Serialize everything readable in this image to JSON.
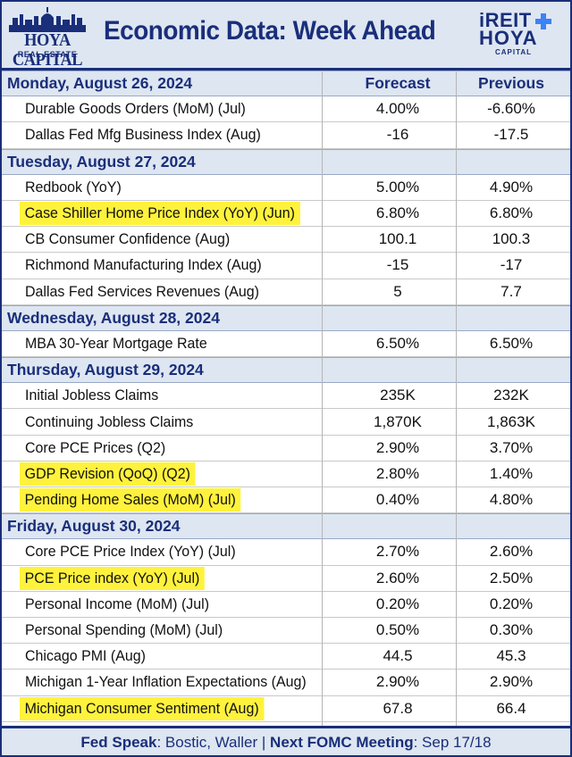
{
  "header": {
    "title": "Economic Data: Week Ahead",
    "logo_left_brand": "HOYA CAPITAL",
    "logo_left_sub": "REAL ESTATE",
    "logo_right_line1": "iREIT",
    "logo_right_line2": "HOYA",
    "logo_right_line3": "CAPITAL"
  },
  "columns": {
    "forecast": "Forecast",
    "previous": "Previous"
  },
  "days": [
    {
      "label": "Monday, August 26, 2024",
      "events": [
        {
          "name": "Durable Goods Orders (MoM) (Jul)",
          "forecast": "4.00%",
          "previous": "-6.60%",
          "highlight": false
        },
        {
          "name": "Dallas Fed Mfg Business Index (Aug)",
          "forecast": "-16",
          "previous": "-17.5",
          "highlight": false
        }
      ]
    },
    {
      "label": "Tuesday, August 27, 2024",
      "events": [
        {
          "name": "Redbook (YoY)",
          "forecast": "5.00%",
          "previous": "4.90%",
          "highlight": false
        },
        {
          "name": "Case Shiller Home Price Index (YoY) (Jun)",
          "forecast": "6.80%",
          "previous": "6.80%",
          "highlight": true
        },
        {
          "name": "CB Consumer Confidence (Aug)",
          "forecast": "100.1",
          "previous": "100.3",
          "highlight": false
        },
        {
          "name": "Richmond Manufacturing Index (Aug)",
          "forecast": "-15",
          "previous": "-17",
          "highlight": false
        },
        {
          "name": "Dallas Fed Services Revenues (Aug)",
          "forecast": "5",
          "previous": "7.7",
          "highlight": false
        }
      ]
    },
    {
      "label": "Wednesday, August 28, 2024",
      "events": [
        {
          "name": "MBA 30-Year Mortgage Rate",
          "forecast": "6.50%",
          "previous": "6.50%",
          "highlight": false
        }
      ]
    },
    {
      "label": "Thursday, August 29, 2024",
      "events": [
        {
          "name": "Initial Jobless Claims",
          "forecast": "235K",
          "previous": "232K",
          "highlight": false
        },
        {
          "name": "Continuing Jobless Claims",
          "forecast": "1,870K",
          "previous": "1,863K",
          "highlight": false
        },
        {
          "name": "Core PCE Prices (Q2)",
          "forecast": "2.90%",
          "previous": "3.70%",
          "highlight": false
        },
        {
          "name": "GDP Revision (QoQ) (Q2)",
          "forecast": "2.80%",
          "previous": "1.40%",
          "highlight": true
        },
        {
          "name": "Pending Home Sales (MoM) (Jul)",
          "forecast": "0.40%",
          "previous": "4.80%",
          "highlight": true
        }
      ]
    },
    {
      "label": "Friday, August 30, 2024",
      "events": [
        {
          "name": "Core PCE Price Index (YoY) (Jul)",
          "forecast": "2.70%",
          "previous": "2.60%",
          "highlight": false
        },
        {
          "name": "PCE Price index (YoY) (Jul)",
          "forecast": "2.60%",
          "previous": "2.50%",
          "highlight": true
        },
        {
          "name": "Personal Income (MoM) (Jul)",
          "forecast": "0.20%",
          "previous": "0.20%",
          "highlight": false
        },
        {
          "name": "Personal Spending (MoM) (Jul)",
          "forecast": "0.50%",
          "previous": "0.30%",
          "highlight": false
        },
        {
          "name": "Chicago PMI (Aug)",
          "forecast": "44.5",
          "previous": "45.3",
          "highlight": false
        },
        {
          "name": "Michigan 1-Year Inflation Expectations (Aug)",
          "forecast": "2.90%",
          "previous": "2.90%",
          "highlight": false
        },
        {
          "name": "Michigan Consumer Sentiment (Aug)",
          "forecast": "67.8",
          "previous": "66.4",
          "highlight": true
        }
      ]
    }
  ],
  "footer": {
    "fed_label": "Fed Speak",
    "fed_value": ": Bostic, Waller | ",
    "fomc_label": "Next FOMC Meeting",
    "fomc_value": ": Sep 17/18"
  },
  "colors": {
    "navy": "#1a2e7a",
    "header_bg": "#dde6f1",
    "highlight": "#fff23c"
  }
}
